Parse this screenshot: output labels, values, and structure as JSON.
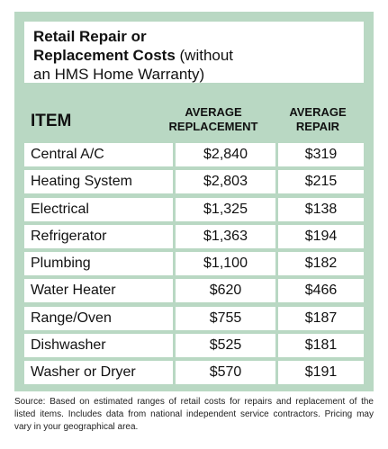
{
  "title": {
    "line1_bold": "Retail Repair or",
    "line2_bold": "Replacement Costs",
    "line2_rest": " (without",
    "line3": "an HMS Home Warranty)"
  },
  "headers": {
    "item": "ITEM",
    "replacement_line1": "AVERAGE",
    "replacement_line2": "REPLACEMENT",
    "repair_line1": "AVERAGE",
    "repair_line2": "REPAIR"
  },
  "rows": [
    {
      "item": "Central A/C",
      "replacement": "$2,840",
      "repair": "$319"
    },
    {
      "item": "Heating System",
      "replacement": "$2,803",
      "repair": "$215"
    },
    {
      "item": "Electrical",
      "replacement": "$1,325",
      "repair": "$138"
    },
    {
      "item": "Refrigerator",
      "replacement": "$1,363",
      "repair": "$194"
    },
    {
      "item": "Plumbing",
      "replacement": "$1,100",
      "repair": "$182"
    },
    {
      "item": "Water Heater",
      "replacement": "$620",
      "repair": "$466"
    },
    {
      "item": "Range/Oven",
      "replacement": "$755",
      "repair": "$187"
    },
    {
      "item": "Dishwasher",
      "replacement": "$525",
      "repair": "$181"
    },
    {
      "item": "Washer or Dryer",
      "replacement": "$570",
      "repair": "$191"
    }
  ],
  "source": "Source: Based on estimated ranges of retail costs for repairs and replacement of the listed items. Includes data from national independent service contractors. Pricing may vary in your geographical area.",
  "colors": {
    "panel_background": "#b9d8c3",
    "cell_background": "#ffffff"
  }
}
